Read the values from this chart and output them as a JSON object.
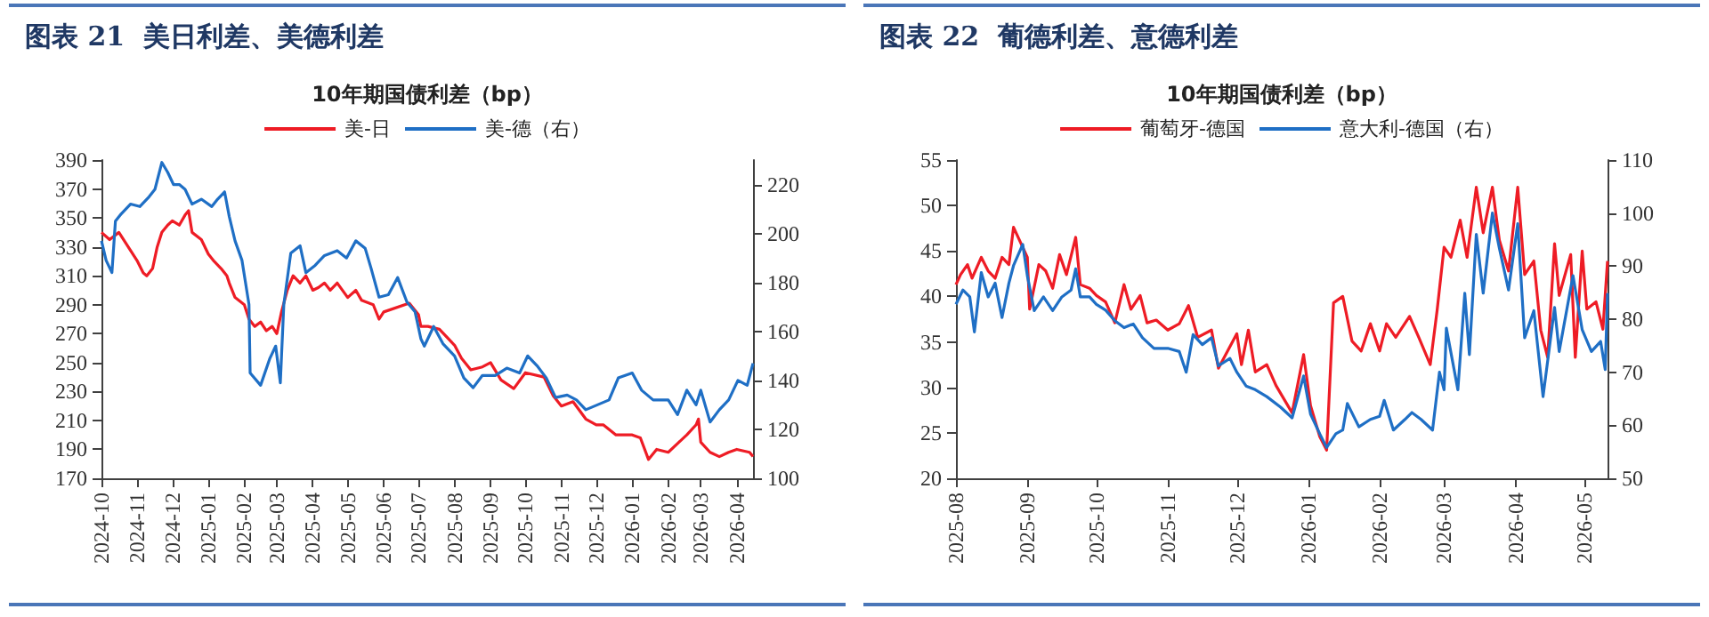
{
  "chart_data": [
    {
      "type": "line",
      "title": "图表 21  美日利差、美德利差",
      "subtitle": "10年期国债利差（bp）",
      "legend": "top",
      "marker": "none",
      "line_style": "solid",
      "grid": false,
      "xlim": [
        "2024-10-01",
        "2026-04-15"
      ],
      "xticks": [
        "2024-10",
        "2024-11",
        "2024-12",
        "2025-01",
        "2025-02",
        "2025-03",
        "2025-04",
        "2025-05",
        "2025-06",
        "2025-07",
        "2025-08",
        "2025-09",
        "2025-10",
        "2025-11",
        "2025-12",
        "2026-01",
        "2026-02",
        "2026-03",
        "2026-04"
      ],
      "ylim": [
        170,
        390
      ],
      "yticks": [
        170,
        190,
        210,
        230,
        250,
        270,
        290,
        310,
        330,
        350,
        370,
        390
      ],
      "y2lim": [
        100,
        230
      ],
      "y2ticks": [
        100,
        120,
        140,
        160,
        180,
        200,
        220
      ],
      "series": [
        {
          "name": "美-日",
          "color": "#ee1c25",
          "x": [
            "2024-10-01",
            "2024-10-08",
            "2024-10-16",
            "2024-10-24",
            "2024-11-01",
            "2024-11-06",
            "2024-11-09",
            "2024-11-14",
            "2024-11-18",
            "2024-11-22",
            "2024-11-27",
            "2024-12-01",
            "2024-12-07",
            "2024-12-12",
            "2024-12-15",
            "2024-12-18",
            "2024-12-26",
            "2025-01-01",
            "2025-01-06",
            "2025-01-12",
            "2025-01-17",
            "2025-01-19",
            "2025-01-24",
            "2025-02-01",
            "2025-02-05",
            "2025-02-10",
            "2025-02-15",
            "2025-02-20",
            "2025-02-25",
            "2025-03-01",
            "2025-03-05",
            "2025-03-10",
            "2025-03-15",
            "2025-03-21",
            "2025-03-26",
            "2025-04-01",
            "2025-04-06",
            "2025-04-11",
            "2025-04-16",
            "2025-04-22",
            "2025-05-01",
            "2025-05-08",
            "2025-05-13",
            "2025-05-23",
            "2025-05-28",
            "2025-06-01",
            "2025-06-23",
            "2025-07-01",
            "2025-07-03",
            "2025-07-09",
            "2025-07-19",
            "2025-08-01",
            "2025-08-07",
            "2025-08-15",
            "2025-08-25",
            "2025-09-01",
            "2025-09-10",
            "2025-09-21",
            "2025-10-01",
            "2025-10-17",
            "2025-10-25",
            "2025-11-01",
            "2025-11-11",
            "2025-11-22",
            "2025-12-01",
            "2025-12-07",
            "2025-12-18",
            "2026-01-01",
            "2026-01-08",
            "2026-01-15",
            "2026-01-22",
            "2026-02-01",
            "2026-02-09",
            "2026-02-17",
            "2026-02-25",
            "2026-02-27",
            "2026-03-01",
            "2026-03-09",
            "2026-03-17",
            "2026-03-25",
            "2026-04-01",
            "2026-04-12",
            "2026-04-15"
          ],
          "values": [
            340,
            335,
            340,
            330,
            320,
            312,
            310,
            315,
            330,
            340,
            345,
            348,
            345,
            352,
            355,
            340,
            335,
            325,
            320,
            315,
            310,
            305,
            295,
            290,
            280,
            275,
            278,
            272,
            275,
            270,
            285,
            300,
            310,
            305,
            310,
            300,
            302,
            305,
            300,
            305,
            295,
            300,
            293,
            290,
            280,
            285,
            291,
            283,
            275,
            275,
            273,
            262,
            253,
            245,
            247,
            250,
            238,
            232,
            243,
            240,
            227,
            220,
            223,
            211,
            207,
            207,
            200,
            200,
            198,
            183,
            190,
            188,
            194,
            200,
            207,
            211,
            195,
            188,
            185,
            188,
            190,
            188,
            185
          ]
        },
        {
          "name": "美-德（右）",
          "color": "#1f6fc5",
          "axis": "y2",
          "x": [
            "2024-10-01",
            "2024-10-05",
            "2024-10-10",
            "2024-10-13",
            "2024-10-18",
            "2024-10-26",
            "2024-11-03",
            "2024-11-11",
            "2024-11-16",
            "2024-11-22",
            "2024-11-27",
            "2024-12-02",
            "2024-12-07",
            "2024-12-12",
            "2024-12-18",
            "2024-12-26",
            "2025-01-04",
            "2025-01-09",
            "2025-01-15",
            "2025-01-19",
            "2025-01-24",
            "2025-01-30",
            "2025-02-05",
            "2025-02-06",
            "2025-02-15",
            "2025-02-23",
            "2025-02-28",
            "2025-03-04",
            "2025-03-07",
            "2025-03-13",
            "2025-03-21",
            "2025-03-26",
            "2025-04-03",
            "2025-04-11",
            "2025-04-22",
            "2025-04-30",
            "2025-05-08",
            "2025-05-16",
            "2025-05-21",
            "2025-05-28",
            "2025-06-05",
            "2025-06-13",
            "2025-06-21",
            "2025-06-28",
            "2025-07-03",
            "2025-07-06",
            "2025-07-14",
            "2025-07-22",
            "2025-08-01",
            "2025-08-09",
            "2025-08-17",
            "2025-08-25",
            "2025-09-05",
            "2025-09-15",
            "2025-09-26",
            "2025-10-03",
            "2025-10-11",
            "2025-10-19",
            "2025-10-27",
            "2025-11-06",
            "2025-11-14",
            "2025-11-22",
            "2025-12-02",
            "2025-12-12",
            "2025-12-20",
            "2026-01-01",
            "2026-01-09",
            "2026-01-19",
            "2026-02-01",
            "2026-02-09",
            "2026-02-17",
            "2026-02-25",
            "2026-03-01",
            "2026-03-09",
            "2026-03-17",
            "2026-03-25",
            "2026-04-02",
            "2026-04-10",
            "2026-04-15"
          ],
          "values": [
            197,
            189,
            184,
            205,
            208,
            212,
            211,
            215,
            218,
            229,
            225,
            220,
            220,
            218,
            212,
            214,
            211,
            214,
            217,
            207,
            197,
            189,
            171,
            143,
            138,
            149,
            154,
            139,
            171,
            192,
            195,
            184,
            187,
            191,
            193,
            190,
            197,
            194,
            186,
            174,
            175,
            182,
            172,
            168,
            157,
            154,
            162,
            155,
            150,
            141,
            137,
            142,
            142,
            145,
            143,
            150,
            146,
            141,
            133,
            134,
            132,
            128,
            130,
            132,
            141,
            143,
            136,
            132,
            132,
            126,
            136,
            130,
            136,
            123,
            128,
            132,
            140,
            138,
            147
          ]
        }
      ]
    },
    {
      "type": "line",
      "title": "图表 22  葡德利差、意德利差",
      "subtitle": "10年期国债利差（bp）",
      "legend": "top",
      "marker": "none",
      "line_style": "solid",
      "grid": false,
      "xlim": [
        "2025-08-01",
        "2026-05-11"
      ],
      "xticks": [
        "2025-08",
        "2025-09",
        "2025-10",
        "2025-11",
        "2025-12",
        "2026-01",
        "2026-02",
        "2026-03",
        "2026-04",
        "2026-05"
      ],
      "ylim": [
        20,
        55
      ],
      "yticks": [
        20,
        25,
        30,
        35,
        40,
        45,
        50,
        55
      ],
      "y2lim": [
        50,
        110
      ],
      "y2ticks": [
        50,
        60,
        70,
        80,
        90,
        100,
        110
      ],
      "series": [
        {
          "name": "葡萄牙-德国",
          "color": "#ee1c25",
          "x": [
            "2025-08-01",
            "2025-08-03",
            "2025-08-06",
            "2025-08-08",
            "2025-08-12",
            "2025-08-15",
            "2025-08-18",
            "2025-08-21",
            "2025-08-24",
            "2025-08-26",
            "2025-08-30",
            "2025-09-01",
            "2025-09-02",
            "2025-09-06",
            "2025-09-09",
            "2025-09-12",
            "2025-09-15",
            "2025-09-18",
            "2025-09-22",
            "2025-09-24",
            "2025-09-28",
            "2025-10-01",
            "2025-10-05",
            "2025-10-09",
            "2025-10-13",
            "2025-10-16",
            "2025-10-20",
            "2025-10-23",
            "2025-10-27",
            "2025-11-01",
            "2025-11-06",
            "2025-11-10",
            "2025-11-14",
            "2025-11-20",
            "2025-11-23",
            "2025-11-27",
            "2025-12-01",
            "2025-12-03",
            "2025-12-06",
            "2025-12-09",
            "2025-12-14",
            "2025-12-18",
            "2025-12-25",
            "2025-12-30",
            "2026-01-02",
            "2026-01-06",
            "2026-01-09",
            "2026-01-12",
            "2026-01-16",
            "2026-01-20",
            "2026-01-24",
            "2026-01-28",
            "2026-02-01",
            "2026-02-04",
            "2026-02-08",
            "2026-02-14",
            "2026-02-18",
            "2026-02-23",
            "2026-02-26",
            "2026-03-01",
            "2026-03-04",
            "2026-03-08",
            "2026-03-11",
            "2026-03-15",
            "2026-03-18",
            "2026-03-22",
            "2026-03-25",
            "2026-03-29",
            "2026-04-02",
            "2026-04-05",
            "2026-04-09",
            "2026-04-12",
            "2026-04-15",
            "2026-04-18",
            "2026-04-20",
            "2026-04-25",
            "2026-04-27",
            "2026-04-30",
            "2026-05-02",
            "2026-05-06",
            "2026-05-09",
            "2026-05-11"
          ],
          "values": [
            41.3,
            42.4,
            43.5,
            42,
            44.3,
            42.8,
            42,
            44.3,
            43.5,
            47.6,
            45.4,
            44.3,
            38.6,
            43.5,
            42.8,
            40.9,
            44.6,
            42.4,
            46.5,
            41.3,
            40.9,
            40.1,
            39.4,
            37.1,
            41.3,
            38.6,
            40.1,
            37.1,
            37.4,
            36.3,
            37,
            39,
            35.5,
            36.3,
            32.1,
            34,
            35.9,
            32.5,
            36.3,
            31.7,
            32.5,
            30.2,
            27.2,
            33.6,
            28,
            24.6,
            23.1,
            39.3,
            40,
            35.1,
            34,
            37,
            34,
            37,
            35.5,
            37.8,
            35.5,
            32.5,
            38.5,
            45.4,
            44.3,
            48.4,
            44.3,
            52,
            47,
            52,
            46.2,
            42.8,
            52,
            42.4,
            43.9,
            36.3,
            33.3,
            45.8,
            40.1,
            44.6,
            33.3,
            45,
            38.6,
            39.4,
            36.4,
            43.9
          ]
        },
        {
          "name": "意大利-德国（右）",
          "color": "#1f6fc5",
          "axis": "y2",
          "x": [
            "2025-08-01",
            "2025-08-04",
            "2025-08-07",
            "2025-08-09",
            "2025-08-12",
            "2025-08-15",
            "2025-08-18",
            "2025-08-21",
            "2025-08-24",
            "2025-08-26",
            "2025-08-30",
            "2025-09-01",
            "2025-09-04",
            "2025-09-08",
            "2025-09-12",
            "2025-09-16",
            "2025-09-20",
            "2025-09-22",
            "2025-09-24",
            "2025-09-28",
            "2025-10-01",
            "2025-10-05",
            "2025-10-09",
            "2025-10-13",
            "2025-10-17",
            "2025-10-21",
            "2025-10-26",
            "2025-11-01",
            "2025-11-06",
            "2025-11-09",
            "2025-11-12",
            "2025-11-16",
            "2025-11-20",
            "2025-11-23",
            "2025-11-28",
            "2025-12-01",
            "2025-12-05",
            "2025-12-09",
            "2025-12-14",
            "2025-12-20",
            "2025-12-25",
            "2025-12-30",
            "2026-01-02",
            "2026-01-06",
            "2026-01-09",
            "2026-01-13",
            "2026-01-16",
            "2026-01-18",
            "2026-01-23",
            "2026-01-28",
            "2026-02-01",
            "2026-02-03",
            "2026-02-07",
            "2026-02-12",
            "2026-02-15",
            "2026-02-19",
            "2026-02-24",
            "2026-02-27",
            "2026-03-01",
            "2026-03-02",
            "2026-03-07",
            "2026-03-10",
            "2026-03-12",
            "2026-03-15",
            "2026-03-18",
            "2026-03-22",
            "2026-03-25",
            "2026-03-29",
            "2026-04-02",
            "2026-04-05",
            "2026-04-09",
            "2026-04-13",
            "2026-04-18",
            "2026-04-20",
            "2026-04-26",
            "2026-04-30",
            "2026-05-04",
            "2026-05-08",
            "2026-05-10",
            "2026-05-11"
          ],
          "values": [
            82.8,
            85.5,
            84.2,
            77.6,
            88.8,
            84.2,
            86.8,
            80.3,
            86.8,
            90.1,
            94.1,
            88.2,
            81.6,
            84.2,
            81.6,
            84.2,
            85.5,
            89.5,
            84.2,
            84.2,
            82.8,
            81.7,
            79.7,
            78.4,
            79.1,
            76.5,
            74.5,
            74.5,
            73.9,
            70,
            77.1,
            75.2,
            76.5,
            71.2,
            72.6,
            70,
            67.4,
            66.7,
            65.4,
            63.4,
            61.4,
            69.3,
            62.1,
            58.4,
            55.8,
            58.4,
            59.1,
            64.1,
            59.7,
            61.1,
            61.7,
            64.7,
            59.1,
            61.1,
            62.4,
            61.1,
            59.1,
            70,
            66.7,
            78.3,
            66.7,
            84.9,
            73.3,
            96,
            84.9,
            100,
            93.4,
            85.5,
            98,
            76.5,
            81.6,
            65.4,
            82.2,
            73.9,
            88.2,
            78,
            73.9,
            75.8,
            70.5,
            84.9
          ]
        }
      ]
    }
  ]
}
